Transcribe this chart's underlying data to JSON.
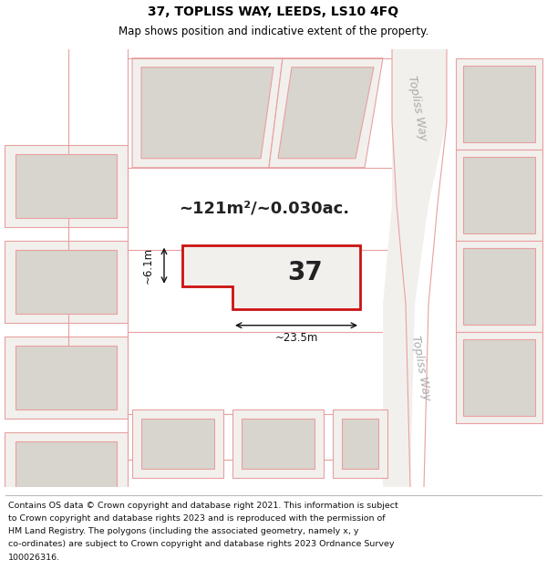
{
  "title_line1": "37, TOPLISS WAY, LEEDS, LS10 4FQ",
  "title_line2": "Map shows position and indicative extent of the property.",
  "footer_lines": [
    "Contains OS data © Crown copyright and database right 2021. This information is subject",
    "to Crown copyright and database rights 2023 and is reproduced with the permission of",
    "HM Land Registry. The polygons (including the associated geometry, namely x, y",
    "co-ordinates) are subject to Crown copyright and database rights 2023 Ordnance Survey",
    "100026316."
  ],
  "bg_color": "#f2f0ed",
  "block_fill": "#d8d4ce",
  "block_edge": "#e8a0a0",
  "prop_edge": "#cc1111",
  "prop_fill": "#f2f0ed",
  "road_fill": "#e8e4de",
  "road_edge": "#c8a8a8",
  "diag_fill": "#dedad4",
  "area_text": "~121m²/~0.030ac.",
  "width_text": "~23.5m",
  "height_text": "~6.1m",
  "prop_number": "37",
  "road_label": "Topliss Way",
  "title_fontsize": 10,
  "subtitle_fontsize": 8.5,
  "footer_fontsize": 6.8,
  "area_fontsize": 13,
  "number_fontsize": 20,
  "dim_fontsize": 8.5,
  "road_label_fontsize": 9
}
